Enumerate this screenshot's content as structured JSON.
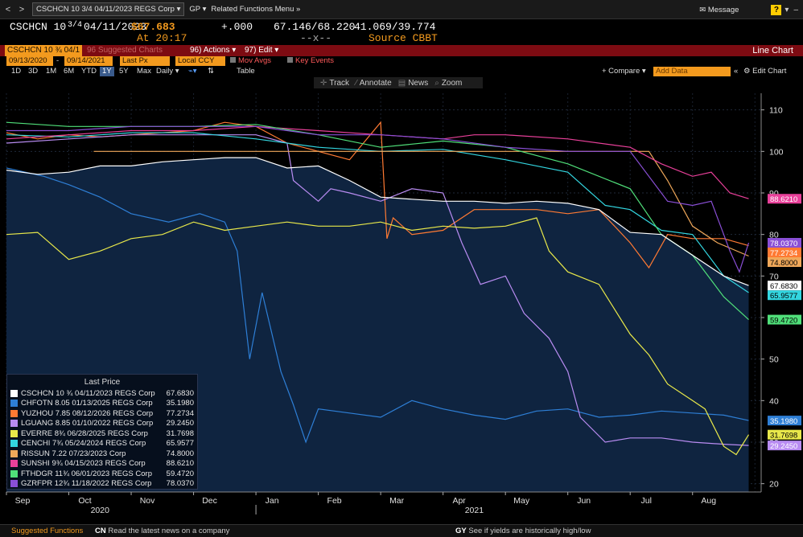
{
  "topbar": {
    "nav_back": "<",
    "nav_fwd": ">",
    "security": "CSCHCN 10 3/4 04/11/2023 REGS Corp",
    "dropdown_arrow": "▾",
    "gp": "GP",
    "related": "Related Functions Menu",
    "related_arrow": "»",
    "message": "Message",
    "help": "?"
  },
  "quote": {
    "ticker": "CSCHCN 10",
    "frac": "3/4",
    "date": "04/11/2023",
    "price": "$67.683",
    "time": "At 20:17",
    "change": "+.000",
    "bid_ask": "67.146/68.220",
    "bid_ask_sub": "--x--",
    "yield": "41.069/39.774",
    "source": "Source CBBT"
  },
  "redbar": {
    "security": "CSCHCN 10 ¾ 04/1",
    "suggested_num": "96",
    "suggested": "Suggested Charts",
    "actions_num": "96)",
    "actions": "Actions ▾",
    "edit_num": "97)",
    "edit": "Edit ▾",
    "title": "Line Chart"
  },
  "settings": {
    "start": "09/13/2020",
    "end": "09/14/2021",
    "field": "Last Px",
    "ccy": "Local CCY",
    "mov_avgs": "Mov Avgs",
    "key_events": "Key Events"
  },
  "period": {
    "buttons": [
      "1D",
      "3D",
      "1M",
      "6M",
      "YTD",
      "1Y",
      "5Y",
      "Max"
    ],
    "active": "1Y",
    "frequency": "Daily ▾",
    "table": "Table",
    "compare": "+ Compare ▾",
    "add_data": "Add Data",
    "edit_chart": "Edit Chart"
  },
  "tools": {
    "track": "Track",
    "annotate": "Annotate",
    "news": "News",
    "zoom": "Zoom"
  },
  "legend": {
    "title": "Last Price",
    "items": [
      {
        "name": "CSCHCN 10 ¾ 04/11/2023 REGS Corp",
        "value": "67.6830",
        "color": "#ffffff"
      },
      {
        "name": "CHFOTN 8.05 01/13/2025 REGS Corp",
        "value": "35.1980",
        "color": "#2e7fd6"
      },
      {
        "name": "YUZHOU 7.85 08/12/2026 REGS Corp",
        "value": "77.2734",
        "color": "#ff7a33"
      },
      {
        "name": "LGUANG 8.85 01/10/2022 REGS Corp",
        "value": "29.2450",
        "color": "#b98cf2"
      },
      {
        "name": "EVERRE 8¾ 06/28/2025 REGS Corp",
        "value": "31.7698",
        "color": "#e8e84a"
      },
      {
        "name": "CENCHI 7¾ 05/24/2024 REGS Corp",
        "value": "65.9577",
        "color": "#33d6e0"
      },
      {
        "name": "RISSUN 7.22 07/23/2023 Corp",
        "value": "74.8000",
        "color": "#f0a85a"
      },
      {
        "name": "SUNSHI 9¾ 04/15/2023 REGS Corp",
        "value": "88.6210",
        "color": "#e9409a"
      },
      {
        "name": "FTHDGR 11¾ 06/01/2023 REGS Corp",
        "value": "59.4720",
        "color": "#50e07a"
      },
      {
        "name": "GZRFPR 12¾ 11/18/2022 REGS Corp",
        "value": "78.0370",
        "color": "#8a4fd6"
      }
    ]
  },
  "bottombar": {
    "suggested": "Suggested Functions",
    "cn_code": "CN",
    "cn_text": "Read the latest news on a company",
    "gy_code": "GY",
    "gy_text": "See if yields are historically high/low"
  },
  "chart_data": {
    "type": "line",
    "x_months": [
      "Sep",
      "Oct",
      "Nov",
      "Dec",
      "Jan",
      "Feb",
      "Mar",
      "Apr",
      "May",
      "Jun",
      "Jul",
      "Aug",
      "Sep"
    ],
    "years": [
      {
        "label": "2020",
        "month_index": 1.5
      },
      {
        "label": "2021",
        "month_index": 7.5
      }
    ],
    "ylim": [
      18,
      114
    ],
    "yticks": [
      20,
      30,
      40,
      50,
      60,
      70,
      80,
      90,
      100,
      110
    ],
    "x_range_months": [
      0,
      12.1
    ],
    "series": [
      {
        "name": "CSCHCN 10 ¾ 04/11/2023 REGS Corp",
        "color": "#ffffff",
        "area": true,
        "last_label": "67.6830",
        "points": [
          [
            0,
            95.5
          ],
          [
            0.5,
            94.5
          ],
          [
            1,
            95
          ],
          [
            1.5,
            96.5
          ],
          [
            2,
            96.5
          ],
          [
            2.5,
            97.5
          ],
          [
            3,
            98
          ],
          [
            3.5,
            98.5
          ],
          [
            4,
            98.5
          ],
          [
            4.5,
            96
          ],
          [
            5,
            96.5
          ],
          [
            5.5,
            93
          ],
          [
            6,
            89
          ],
          [
            6.5,
            88.5
          ],
          [
            7,
            88
          ],
          [
            7.5,
            88
          ],
          [
            8,
            87.5
          ],
          [
            8.5,
            88
          ],
          [
            9,
            87.5
          ],
          [
            9.5,
            86
          ],
          [
            10,
            80.5
          ],
          [
            10.5,
            80
          ],
          [
            11,
            75
          ],
          [
            11.5,
            70
          ],
          [
            11.9,
            67.7
          ]
        ]
      },
      {
        "name": "CHFOTN 8.05 01/13/2025 REGS Corp",
        "color": "#2e7fd6",
        "last_label": "35.1980",
        "points": [
          [
            0,
            96
          ],
          [
            0.6,
            94
          ],
          [
            1,
            92
          ],
          [
            1.5,
            89
          ],
          [
            2,
            85
          ],
          [
            2.6,
            83
          ],
          [
            3.1,
            85
          ],
          [
            3.5,
            83
          ],
          [
            3.7,
            76
          ],
          [
            3.9,
            50
          ],
          [
            4.1,
            66
          ],
          [
            4.4,
            47
          ],
          [
            4.6,
            39
          ],
          [
            4.8,
            30
          ],
          [
            5,
            38
          ],
          [
            5.5,
            37
          ],
          [
            6,
            36
          ],
          [
            6.5,
            40
          ],
          [
            7,
            38
          ],
          [
            7.5,
            36.5
          ],
          [
            8,
            35.5
          ],
          [
            8.5,
            37.5
          ],
          [
            9,
            38
          ],
          [
            9.5,
            36
          ],
          [
            10,
            36.5
          ],
          [
            10.5,
            37.5
          ],
          [
            11,
            37
          ],
          [
            11.5,
            36.5
          ],
          [
            11.9,
            35.2
          ]
        ]
      },
      {
        "name": "YUZHOU 7.85 08/12/2026 REGS Corp",
        "color": "#ff7a33",
        "last_label": "77.2734",
        "points": [
          [
            0,
            104.5
          ],
          [
            0.5,
            103
          ],
          [
            1,
            104
          ],
          [
            1.5,
            103.5
          ],
          [
            2,
            104
          ],
          [
            2.5,
            104.5
          ],
          [
            3,
            105
          ],
          [
            3.5,
            107
          ],
          [
            4,
            106
          ],
          [
            4.5,
            102
          ],
          [
            5,
            100
          ],
          [
            5.5,
            98
          ],
          [
            6,
            107
          ],
          [
            6.1,
            79
          ],
          [
            6.2,
            84
          ],
          [
            6.5,
            80
          ],
          [
            7,
            81
          ],
          [
            7.5,
            86
          ],
          [
            8,
            86
          ],
          [
            8.5,
            86
          ],
          [
            9,
            85
          ],
          [
            9.5,
            86
          ],
          [
            10,
            78
          ],
          [
            10.3,
            72
          ],
          [
            10.6,
            80
          ],
          [
            11,
            79
          ],
          [
            11.5,
            79
          ],
          [
            11.9,
            77.3
          ]
        ]
      },
      {
        "name": "LGUANG 8.85 01/10/2022 REGS Corp",
        "color": "#b98cf2",
        "last_label": "29.2450",
        "points": [
          [
            0,
            102
          ],
          [
            1,
            103
          ],
          [
            2,
            104
          ],
          [
            3,
            104
          ],
          [
            4,
            104
          ],
          [
            4.5,
            102
          ],
          [
            4.6,
            93
          ],
          [
            5,
            88
          ],
          [
            5.2,
            91
          ],
          [
            5.5,
            90
          ],
          [
            6,
            88
          ],
          [
            6.5,
            91
          ],
          [
            7,
            90
          ],
          [
            7.3,
            78
          ],
          [
            7.6,
            68
          ],
          [
            8,
            70
          ],
          [
            8.3,
            61
          ],
          [
            8.7,
            55
          ],
          [
            9,
            47
          ],
          [
            9.2,
            36
          ],
          [
            9.6,
            30
          ],
          [
            10,
            31
          ],
          [
            10.5,
            31
          ],
          [
            11,
            30
          ],
          [
            11.5,
            29.5
          ],
          [
            11.9,
            29.2
          ]
        ]
      },
      {
        "name": "EVERRE 8¾ 06/28/2025 REGS Corp",
        "color": "#e8e84a",
        "last_label": "31.7698",
        "points": [
          [
            0,
            80
          ],
          [
            0.5,
            80.5
          ],
          [
            1,
            74
          ],
          [
            1.5,
            76
          ],
          [
            2,
            79
          ],
          [
            2.5,
            80
          ],
          [
            3,
            83
          ],
          [
            3.5,
            81
          ],
          [
            4,
            82
          ],
          [
            4.5,
            83
          ],
          [
            5,
            82
          ],
          [
            5.5,
            82
          ],
          [
            6,
            83
          ],
          [
            6.5,
            81
          ],
          [
            7,
            82
          ],
          [
            7.5,
            81.5
          ],
          [
            8,
            82
          ],
          [
            8.5,
            84
          ],
          [
            8.7,
            76
          ],
          [
            9,
            71
          ],
          [
            9.5,
            68
          ],
          [
            10,
            56
          ],
          [
            10.3,
            51
          ],
          [
            10.6,
            44
          ],
          [
            11,
            40
          ],
          [
            11.2,
            38
          ],
          [
            11.5,
            29
          ],
          [
            11.7,
            27
          ],
          [
            11.9,
            31.8
          ]
        ]
      },
      {
        "name": "CENCHI 7¾ 05/24/2024 REGS Corp",
        "color": "#33d6e0",
        "last_label": "65.9577",
        "points": [
          [
            0,
            104
          ],
          [
            1,
            103.5
          ],
          [
            2,
            104.5
          ],
          [
            3,
            104.5
          ],
          [
            4,
            103
          ],
          [
            5,
            101
          ],
          [
            6,
            100
          ],
          [
            7,
            100.5
          ],
          [
            8,
            98
          ],
          [
            9,
            95
          ],
          [
            9.6,
            87
          ],
          [
            10,
            86
          ],
          [
            10.5,
            81
          ],
          [
            11,
            80
          ],
          [
            11.5,
            70
          ],
          [
            11.9,
            66
          ]
        ]
      },
      {
        "name": "RISSUN 7.22 07/23/2023 Corp",
        "color": "#f0a85a",
        "last_label": "74.8000",
        "points": [
          [
            1.4,
            100
          ],
          [
            3,
            100
          ],
          [
            5,
            100
          ],
          [
            7,
            100
          ],
          [
            9,
            100
          ],
          [
            10,
            100
          ],
          [
            10.3,
            100
          ],
          [
            10.6,
            93
          ],
          [
            11,
            82
          ],
          [
            11.4,
            78
          ],
          [
            11.9,
            74.8
          ]
        ]
      },
      {
        "name": "SUNSHI 9¾ 04/15/2023 REGS Corp",
        "color": "#e9409a",
        "last_label": "88.6210",
        "points": [
          [
            0,
            103
          ],
          [
            1,
            104
          ],
          [
            2,
            105
          ],
          [
            3,
            105
          ],
          [
            4,
            106
          ],
          [
            5,
            105
          ],
          [
            6,
            104
          ],
          [
            7,
            103
          ],
          [
            7.5,
            104
          ],
          [
            8,
            104
          ],
          [
            9,
            103
          ],
          [
            10,
            101
          ],
          [
            10.5,
            97
          ],
          [
            11,
            94
          ],
          [
            11.3,
            95
          ],
          [
            11.6,
            90
          ],
          [
            11.9,
            88.6
          ]
        ]
      },
      {
        "name": "FTHDGR 11¾ 06/01/2023 REGS Corp",
        "color": "#50e07a",
        "last_label": "59.4720",
        "points": [
          [
            0,
            107
          ],
          [
            1,
            106
          ],
          [
            2,
            106
          ],
          [
            3,
            106
          ],
          [
            4,
            106.5
          ],
          [
            5,
            104
          ],
          [
            6,
            101
          ],
          [
            7,
            102.5
          ],
          [
            8,
            101
          ],
          [
            9,
            97
          ],
          [
            10,
            91
          ],
          [
            10.5,
            80
          ],
          [
            11,
            75
          ],
          [
            11.5,
            65
          ],
          [
            11.9,
            59.5
          ]
        ]
      },
      {
        "name": "GZRFPR 12¾ 11/18/2022 REGS Corp",
        "color": "#8a4fd6",
        "last_label": "78.0370",
        "points": [
          [
            0,
            105
          ],
          [
            1,
            105
          ],
          [
            2,
            106
          ],
          [
            3,
            106
          ],
          [
            4,
            106
          ],
          [
            5,
            104
          ],
          [
            6,
            104
          ],
          [
            7,
            103
          ],
          [
            8,
            101
          ],
          [
            9,
            100
          ],
          [
            10,
            100
          ],
          [
            10.6,
            88
          ],
          [
            11,
            87
          ],
          [
            11.3,
            88
          ],
          [
            11.6,
            76
          ],
          [
            11.75,
            71
          ],
          [
            11.9,
            78
          ]
        ]
      }
    ]
  }
}
